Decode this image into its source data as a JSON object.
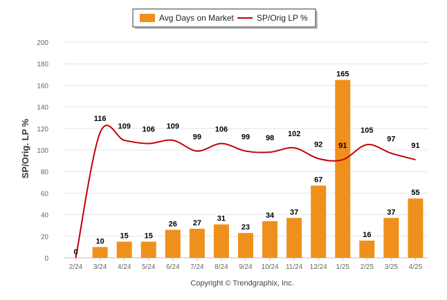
{
  "chart_data": {
    "type": "bar",
    "categories": [
      "2/24",
      "3/24",
      "4/24",
      "5/24",
      "6/24",
      "7/24",
      "8/24",
      "9/24",
      "10/24",
      "11/24",
      "12/24",
      "1/25",
      "2/25",
      "3/25",
      "4/25"
    ],
    "series": [
      {
        "name": "Avg Days on Market",
        "type": "bar",
        "values": [
          0,
          10,
          15,
          15,
          26,
          27,
          31,
          23,
          34,
          37,
          67,
          165,
          16,
          37,
          55
        ],
        "color": "#F0901C"
      },
      {
        "name": "SP/Orig LP %",
        "type": "line",
        "values": [
          0,
          116,
          109,
          106,
          109,
          99,
          106,
          99,
          98,
          102,
          92,
          91,
          105,
          97,
          91
        ],
        "color": "#C00000"
      }
    ],
    "ylabel": "SP/Orig. LP %",
    "ylim": [
      0,
      200
    ],
    "yticks": [
      0,
      20,
      40,
      60,
      80,
      100,
      120,
      140,
      160,
      180,
      200
    ],
    "grid": true,
    "legend_position": "top-center"
  },
  "legend": {
    "bar_label": "Avg Days on Market",
    "line_label": "SP/Orig LP %"
  },
  "copyright": "Copyright © Trendgraphix, Inc."
}
